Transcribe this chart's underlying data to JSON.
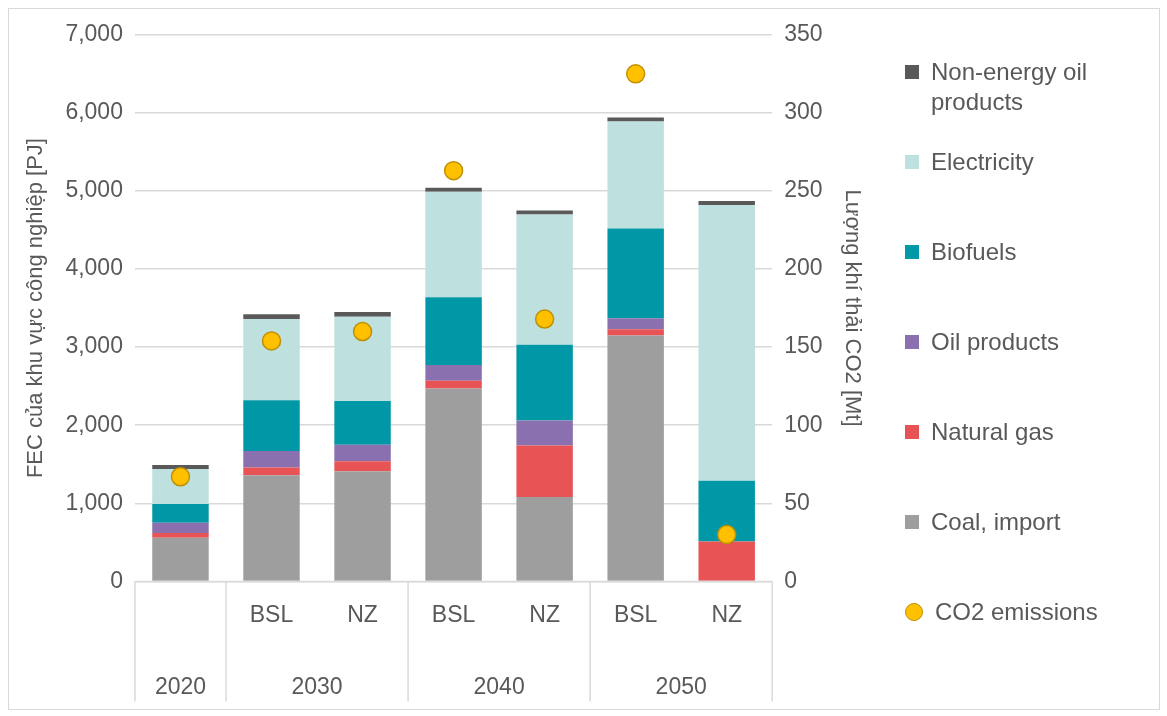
{
  "chart_data": {
    "type": "bar",
    "stacked": true,
    "categories": [
      null,
      "BSL",
      "NZ",
      "BSL",
      "NZ",
      "BSL",
      "NZ"
    ],
    "annotations": [
      "2020",
      "2030",
      "2040",
      "2050"
    ],
    "ylabel": "FEC của khu vực công nghiệp [PJ]",
    "y2label": "Lượng khí thải CO2 [Mt]",
    "ylim": [
      0,
      7000
    ],
    "yticks": [
      {
        "value": 0,
        "label": "0"
      },
      {
        "value": 1000,
        "label": "1,000"
      },
      {
        "value": 2000,
        "label": "2,000"
      },
      {
        "value": 3000,
        "label": "3,000"
      },
      {
        "value": 4000,
        "label": "4,000"
      },
      {
        "value": 5000,
        "label": "5,000"
      },
      {
        "value": 6000,
        "label": "6,000"
      },
      {
        "value": 7000,
        "label": "7,000"
      }
    ],
    "y2lim": [
      0,
      350
    ],
    "y2ticks": [
      0,
      50,
      100,
      150,
      200,
      250,
      300,
      350
    ],
    "grid": "y",
    "legend": "right",
    "series": [
      {
        "name": "Coal, import",
        "color": "#9e9e9e",
        "values": [
          560,
          1360,
          1410,
          2470,
          1080,
          3150,
          0
        ]
      },
      {
        "name": "Natural gas",
        "color": "#e85456",
        "values": [
          60,
          100,
          130,
          100,
          660,
          80,
          510
        ]
      },
      {
        "name": "Oil products",
        "color": "#8a70ae",
        "values": [
          130,
          210,
          210,
          200,
          320,
          140,
          0
        ]
      },
      {
        "name": "Biofuels",
        "color": "#0097a7",
        "values": [
          240,
          650,
          560,
          870,
          970,
          1150,
          780
        ]
      },
      {
        "name": "Electricity",
        "color": "#bee0de",
        "values": [
          450,
          1040,
          1080,
          1350,
          1670,
          1370,
          3530
        ]
      },
      {
        "name": "Non-energy oil products",
        "color": "#595959",
        "values": [
          50,
          60,
          60,
          50,
          50,
          50,
          50
        ]
      },
      {
        "name": "CO2 emissions",
        "type": "scatter",
        "axis": "y2",
        "marker": "circle",
        "color": "#ffc000",
        "values": [
          67,
          154,
          160,
          263,
          168,
          325,
          30
        ]
      }
    ]
  }
}
